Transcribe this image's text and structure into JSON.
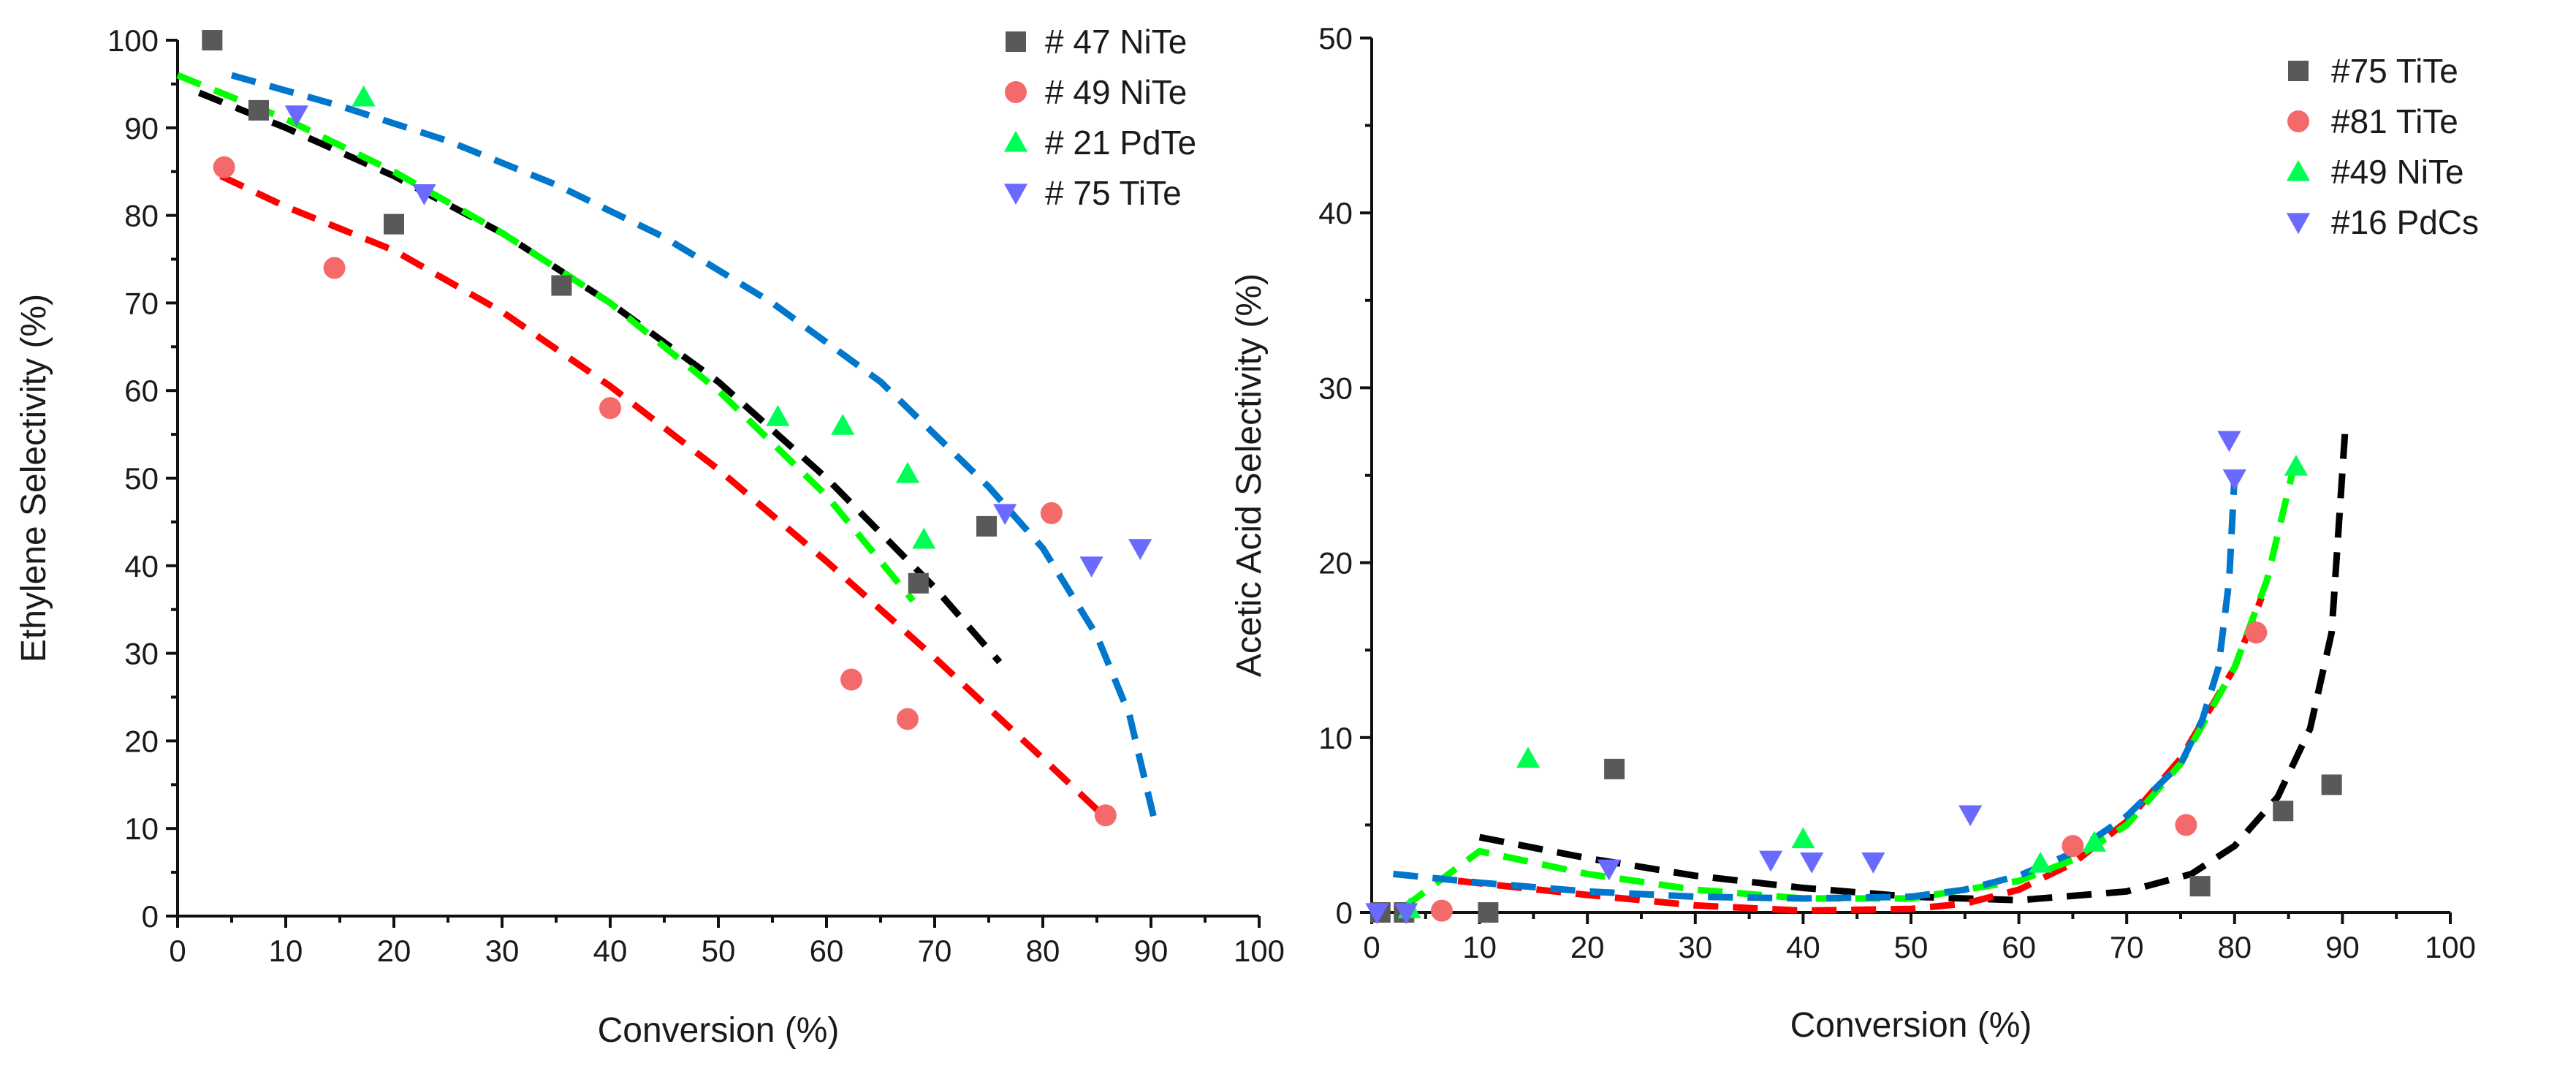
{
  "chart_data": [
    {
      "type": "scatter",
      "title": "",
      "xlabel": "Conversion (%)",
      "ylabel": "Ethylene Selectivity (%)",
      "xlim": [
        0,
        100
      ],
      "ylim": [
        0,
        100
      ],
      "xticks": [
        "0",
        "10",
        "20",
        "30",
        "40",
        "50",
        "60",
        "70",
        "80",
        "90",
        "100"
      ],
      "yticks": [
        "0",
        "10",
        "20",
        "30",
        "40",
        "50",
        "60",
        "70",
        "80",
        "90",
        "100"
      ],
      "legend_position": "top-right",
      "series": [
        {
          "name": "# 47 NiTe",
          "marker": "square",
          "color": "#595959",
          "fit_color": "#000000",
          "x": [
            3.2,
            7.5,
            20,
            35.5,
            68.5,
            74.8
          ],
          "y": [
            100,
            92,
            79,
            72,
            38,
            44.5
          ],
          "fit_x": [
            2,
            10,
            20,
            30,
            40,
            50,
            60,
            70,
            76
          ],
          "fit_y": [
            94,
            90,
            84.5,
            78,
            70,
            61,
            50,
            37.5,
            29
          ]
        },
        {
          "name": "# 49 NiTe",
          "marker": "circle",
          "color": "#f46a6a",
          "fit_color": "#ff0000",
          "x": [
            4.3,
            14.5,
            40,
            62.3,
            67.5,
            80.8,
            85.8
          ],
          "y": [
            85.5,
            74,
            58,
            27,
            22.5,
            46,
            11.5
          ],
          "fit_x": [
            4,
            10,
            20,
            30,
            40,
            50,
            60,
            70,
            80,
            86
          ],
          "fit_y": [
            84.5,
            81,
            76,
            69,
            60.5,
            51,
            40.5,
            29.5,
            18,
            11
          ]
        },
        {
          "name": "# 21 PdTe",
          "marker": "triangle-up",
          "color": "#00ff55",
          "fit_color": "#00ff00",
          "x": [
            17.2,
            55.5,
            61.5,
            67.5,
            69
          ],
          "y": [
            93.5,
            57,
            56,
            50.5,
            43
          ],
          "fit_x": [
            0,
            10,
            20,
            30,
            40,
            50,
            60,
            68
          ],
          "fit_y": [
            96,
            91,
            85,
            78,
            70,
            60,
            48,
            36
          ]
        },
        {
          "name": "# 75 TiTe",
          "marker": "triangle-down",
          "color": "#6a6aff",
          "fit_color": "#0077cc",
          "x": [
            11,
            22.8,
            76.5,
            84.5,
            89
          ],
          "y": [
            91.5,
            82.5,
            46,
            40,
            42
          ],
          "fit_x": [
            5,
            15,
            25,
            35,
            45,
            55,
            65,
            75,
            80,
            85,
            88,
            90.5
          ],
          "fit_y": [
            96,
            92.5,
            88.5,
            83.5,
            77.5,
            70,
            61,
            49,
            42,
            32,
            23,
            10
          ]
        }
      ]
    },
    {
      "type": "scatter",
      "title": "",
      "xlabel": "Conversion (%)",
      "ylabel": "Acetic Acid Selectivity (%)",
      "xlim": [
        0,
        100
      ],
      "ylim": [
        0,
        50
      ],
      "xticks": [
        "0",
        "10",
        "20",
        "30",
        "40",
        "50",
        "60",
        "70",
        "80",
        "90",
        "100"
      ],
      "yticks": [
        "0",
        "10",
        "20",
        "30",
        "40",
        "50"
      ],
      "legend_position": "top-right",
      "series": [
        {
          "name": "#75 TiTe",
          "marker": "square",
          "color": "#595959",
          "fit_color": "#000000",
          "x": [
            0.8,
            3,
            10.8,
            22.5,
            76.8,
            84.5,
            89
          ],
          "y": [
            0,
            0,
            0,
            8.2,
            1.5,
            5.8,
            7.3
          ],
          "fit_x": [
            10,
            20,
            30,
            40,
            50,
            60,
            70,
            76,
            80,
            84,
            87,
            89,
            90.3
          ],
          "fit_y": [
            4.3,
            3.1,
            2.1,
            1.4,
            0.9,
            0.7,
            1.2,
            2.2,
            3.8,
            6.6,
            10.5,
            16,
            28
          ]
        },
        {
          "name": "#81 TiTe",
          "marker": "circle",
          "color": "#f46a6a",
          "fit_color": "#ff0000",
          "x": [
            6.5,
            65,
            75.5,
            82
          ],
          "y": [
            0.1,
            3.8,
            5,
            16
          ],
          "fit_x": [
            8,
            20,
            30,
            40,
            50,
            55,
            60,
            65,
            70,
            75,
            80,
            82.5
          ],
          "fit_y": [
            1.8,
            1,
            0.4,
            0.1,
            0.2,
            0.5,
            1.3,
            2.8,
            5.2,
            8.8,
            14,
            18
          ]
        },
        {
          "name": "#49 NiTe",
          "marker": "triangle-up",
          "color": "#00ff55",
          "fit_color": "#00ff00",
          "x": [
            3.5,
            14.5,
            40,
            62,
            67,
            85.7
          ],
          "y": [
            0.2,
            8.8,
            4.2,
            2.8,
            4,
            25.5
          ],
          "fit_x": [
            3,
            10,
            20,
            30,
            40,
            50,
            60,
            65,
            70,
            75,
            80,
            83,
            85.5
          ],
          "fit_y": [
            0.3,
            3.5,
            2.2,
            1.3,
            0.8,
            0.8,
            1.8,
            3,
            5,
            8.5,
            14,
            19,
            25.5
          ]
        },
        {
          "name": "#16 PdCs",
          "marker": "triangle-down",
          "color": "#6a6aff",
          "fit_color": "#0077cc",
          "x": [
            0.5,
            3.2,
            22,
            37,
            40.8,
            46.5,
            55.5,
            79.5,
            80
          ],
          "y": [
            0,
            0,
            2.5,
            3,
            2.9,
            2.9,
            5.6,
            27,
            24.8
          ],
          "fit_x": [
            2,
            10,
            20,
            30,
            40,
            50,
            55,
            60,
            65,
            70,
            75,
            77,
            78.5,
            79.5,
            80
          ],
          "fit_y": [
            2.2,
            1.7,
            1.2,
            0.9,
            0.8,
            0.9,
            1.3,
            2.1,
            3.4,
            5.5,
            8.5,
            11,
            14,
            19,
            25
          ]
        }
      ]
    }
  ]
}
